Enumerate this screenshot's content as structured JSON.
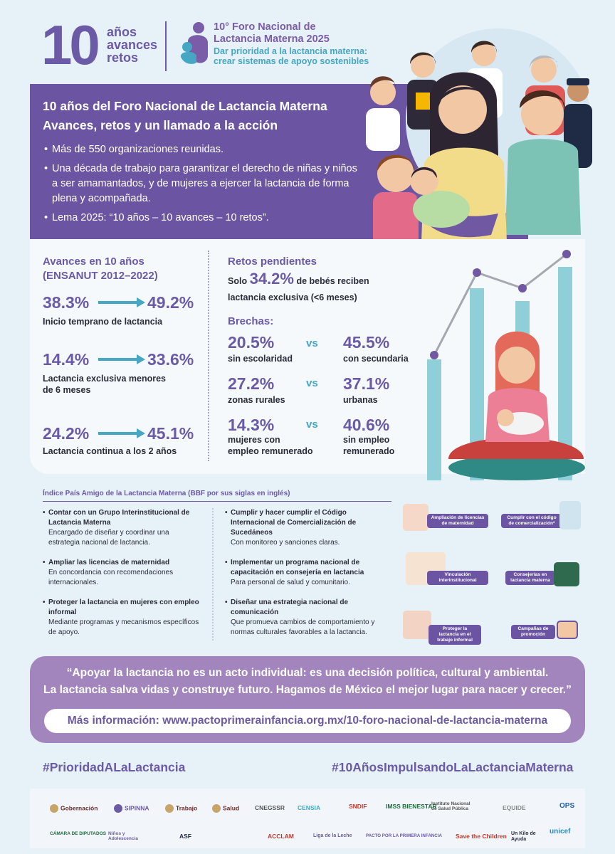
{
  "header": {
    "big_number": "10",
    "tagline": [
      "años",
      "avances",
      "retos"
    ],
    "forum_title": [
      "10° Foro Nacional de",
      "Lactancia Materna 2025"
    ],
    "forum_subtitle": [
      "Dar prioridad a la lactancia materna:",
      "crear sistemas de apoyo sostenibles"
    ]
  },
  "intro": {
    "title_line1": "10 años del Foro Nacional de Lactancia Materna",
    "title_line2": "Avances, retos y un llamado a la acción",
    "bullets": [
      "Más de 550 organizaciones reunidas.",
      "Una década de trabajo para garantizar el derecho de niñas y niños a ser amamantados, y de mujeres a ejercer la lactancia de forma plena y acompañada.",
      "Lema 2025: “10 años – 10 avances – 10 retos”."
    ]
  },
  "advances": {
    "heading": "Avances en 10 años",
    "subheading": "(ENSANUT 2012–2022)",
    "items": [
      {
        "from": "38.3%",
        "to": "49.2%",
        "label": "Inicio temprano de lactancia"
      },
      {
        "from": "14.4%",
        "to": "33.6%",
        "label": "Lactancia exclusiva menores de 6 meses"
      },
      {
        "from": "24.2%",
        "to": "45.1%",
        "label": "Lactancia continua a los 2 años"
      }
    ]
  },
  "challenges": {
    "heading": "Retos pendientes",
    "solo_prefix": "Solo",
    "solo_value": "34.2%",
    "solo_suffix": "de bebés reciben",
    "solo_line2": "lactancia exclusiva (<6 meses)",
    "gaps_heading": "Brechas:",
    "vs": "vs",
    "gaps": [
      {
        "left_value": "20.5%",
        "left_label": "sin escolaridad",
        "right_value": "45.5%",
        "right_label": "con secundaria"
      },
      {
        "left_value": "27.2%",
        "left_label": "zonas rurales",
        "right_value": "37.1%",
        "right_label": "urbanas"
      },
      {
        "left_value": "14.3%",
        "left_label": "mujeres con empleo remunerado",
        "right_value": "40.6%",
        "right_label": "sin empleo remunerado"
      }
    ]
  },
  "bbf": {
    "title": "Índice País Amigo de la Lactancia Materna (BBF por sus siglas en inglés)",
    "left": [
      {
        "head": "Contar con un Grupo Interinstitucional de Lactancia Materna",
        "body": "Encargado de diseñar y coordinar una estrategia nacional de lactancia."
      },
      {
        "head": "Ampliar las licencias de maternidad",
        "body": "En concordancia con recomendaciones internacionales."
      },
      {
        "head": "Proteger la lactancia en mujeres con empleo informal",
        "body": "Mediante programas y mecanismos específicos de apoyo."
      }
    ],
    "right": [
      {
        "head": "Cumplir y hacer cumplir el Código Internacional de Comercialización de Sucedáneos",
        "body": "Con monitoreo y sanciones claras."
      },
      {
        "head": "Implementar un programa nacional de capacitación en consejería en lactancia",
        "body": "Para personal de salud y comunitario."
      },
      {
        "head": "Diseñar una estrategia nacional de comunicación",
        "body": "Que promueva cambios de comportamiento y normas culturales favorables a la lactancia."
      }
    ],
    "pills": [
      "Ampliación de licencias de maternidad",
      "Cumplir con el código de comercialización*",
      "Vinculación interinstitucional",
      "Consejerías en lactancia materna",
      "Proteger la lactancia en el trabajo informal",
      "Campañas de promoción"
    ]
  },
  "quote": {
    "line1": "“Apoyar la lactancia no es un acto individual: es una decisión política, cultural y ambiental.",
    "line2": "La lactancia salva vidas y construye futuro. Hagamos de México el mejor lugar para nacer y crecer.”",
    "more_info": "Más información: www.pactoprimerainfancia.org.mx/10-foro-nacional-de-lactancia-materna"
  },
  "hashtags": [
    "#PrioridadALaLactancia",
    "#10AñosImpulsandoLaLactanciaMaterna"
  ],
  "logos": {
    "row1": [
      "Gobernación",
      "SIPINNA",
      "Trabajo",
      "Salud",
      "CNEGSSR",
      "CENSIA",
      "SNDIF",
      "IMSS BIENESTAR",
      "Instituto Nacional de Salud Pública",
      "EQUIDE",
      "OPS"
    ],
    "row2": [
      "CÁMARA DE DIPUTADOS",
      "Niños y Adolescencia",
      "ASF",
      "ACCLAM",
      "Liga de la Leche",
      "PACTO POR LA PRIMERA INFANCIA",
      "Save the Children",
      "Un Kilo de Ayuda",
      "unicef"
    ]
  },
  "colors": {
    "purple": "#6b55a2",
    "lavender": "#a285bd",
    "teal": "#45a7c4",
    "bg": "#e7f1f8"
  }
}
